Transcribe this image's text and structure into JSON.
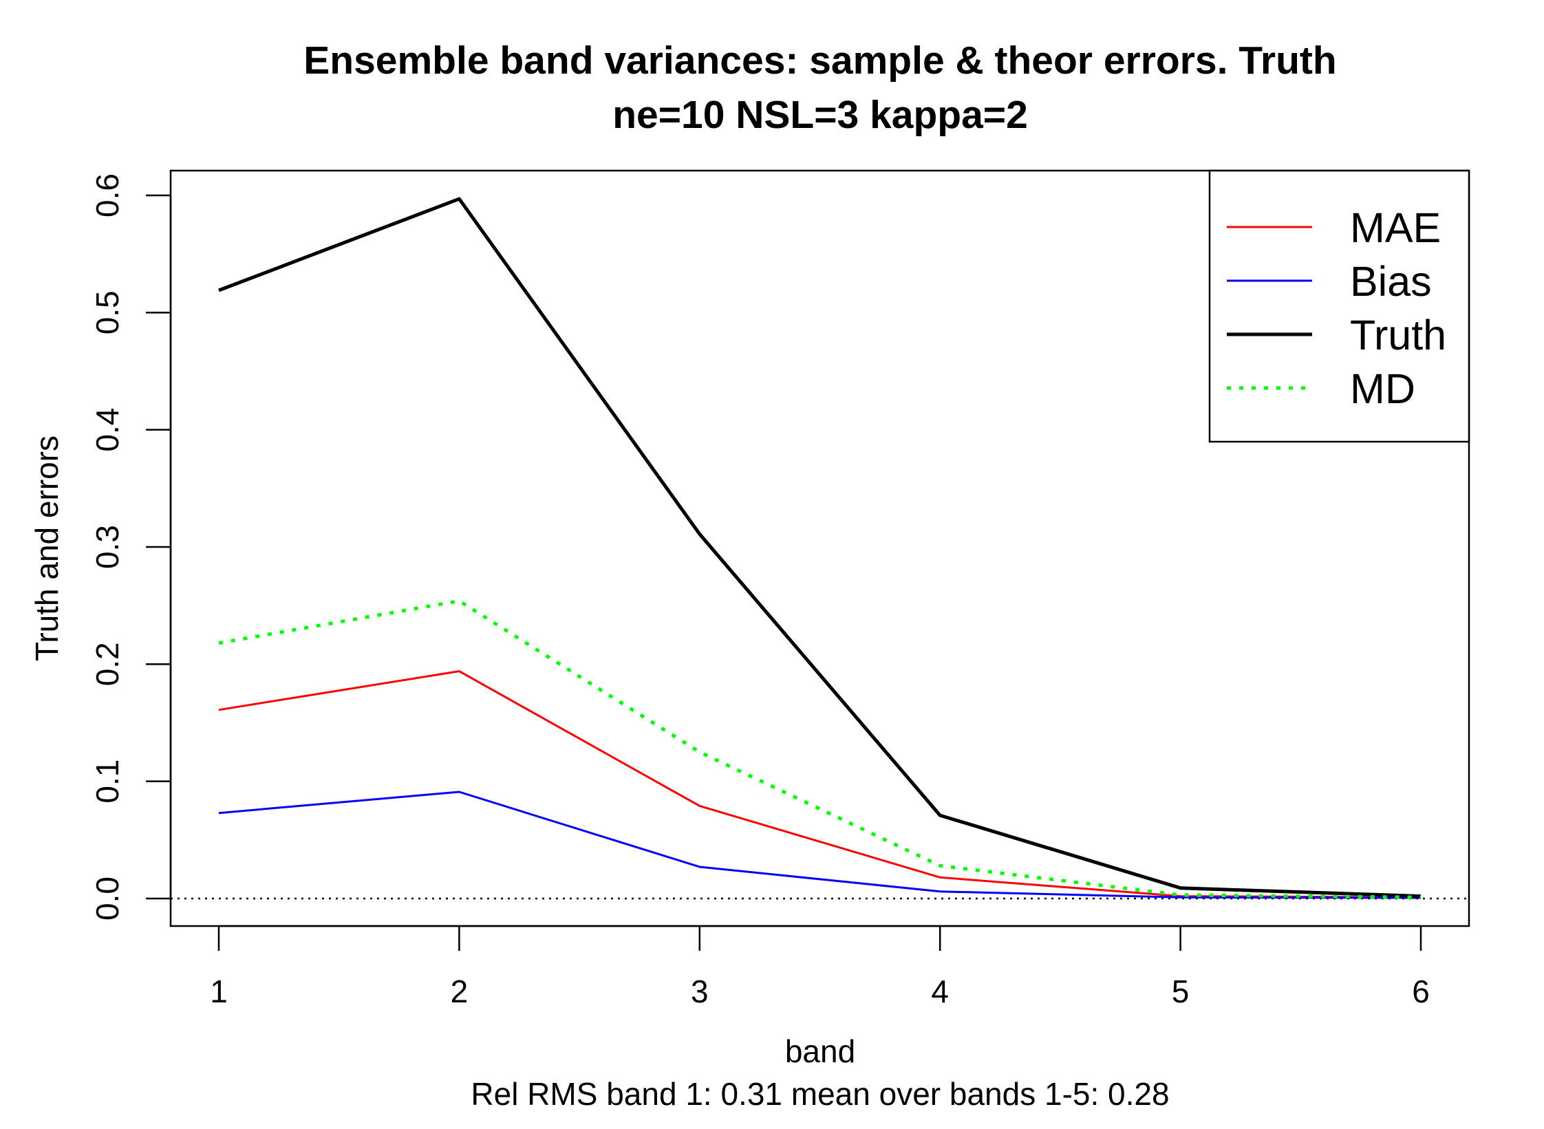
{
  "chart_data": {
    "type": "line",
    "title": "Ensemble band variances: sample & theor errors. Truth",
    "subtitle": "ne=10 NSL=3 kappa=2",
    "xlabel": "band",
    "ylabel": "Truth and errors",
    "caption": "Rel RMS band 1: 0.31  mean over bands 1-5: 0.28",
    "x": [
      1,
      2,
      3,
      4,
      5,
      6
    ],
    "xlim": [
      1,
      6
    ],
    "ylim": [
      0,
      0.6
    ],
    "x_ticks": [
      1,
      2,
      3,
      4,
      5,
      6
    ],
    "x_tick_labels": [
      "1",
      "2",
      "3",
      "4",
      "5",
      "6"
    ],
    "y_ticks": [
      0,
      0.1,
      0.2,
      0.3,
      0.4,
      0.5,
      0.6
    ],
    "y_tick_labels": [
      "0.0",
      "0.1",
      "0.2",
      "0.3",
      "0.4",
      "0.5",
      "0.6"
    ],
    "grid": false,
    "zero_reference_line": true,
    "legend_position": "top-right",
    "series": [
      {
        "name": "MAE",
        "color": "#ff0000",
        "style": "solid",
        "width": "thin",
        "values": [
          0.161,
          0.194,
          0.079,
          0.018,
          0.002,
          0.001
        ]
      },
      {
        "name": "Bias",
        "color": "#0000ff",
        "style": "solid",
        "width": "thin",
        "values": [
          0.073,
          0.091,
          0.027,
          0.006,
          0.001,
          0.0005
        ]
      },
      {
        "name": "Truth",
        "color": "#000000",
        "style": "solid",
        "width": "thick",
        "values": [
          0.519,
          0.597,
          0.311,
          0.071,
          0.009,
          0.002
        ]
      },
      {
        "name": "MD",
        "color": "#00ff00",
        "style": "dotted",
        "width": "thick",
        "values": [
          0.218,
          0.254,
          0.125,
          0.028,
          0.003,
          0.001
        ]
      }
    ]
  }
}
